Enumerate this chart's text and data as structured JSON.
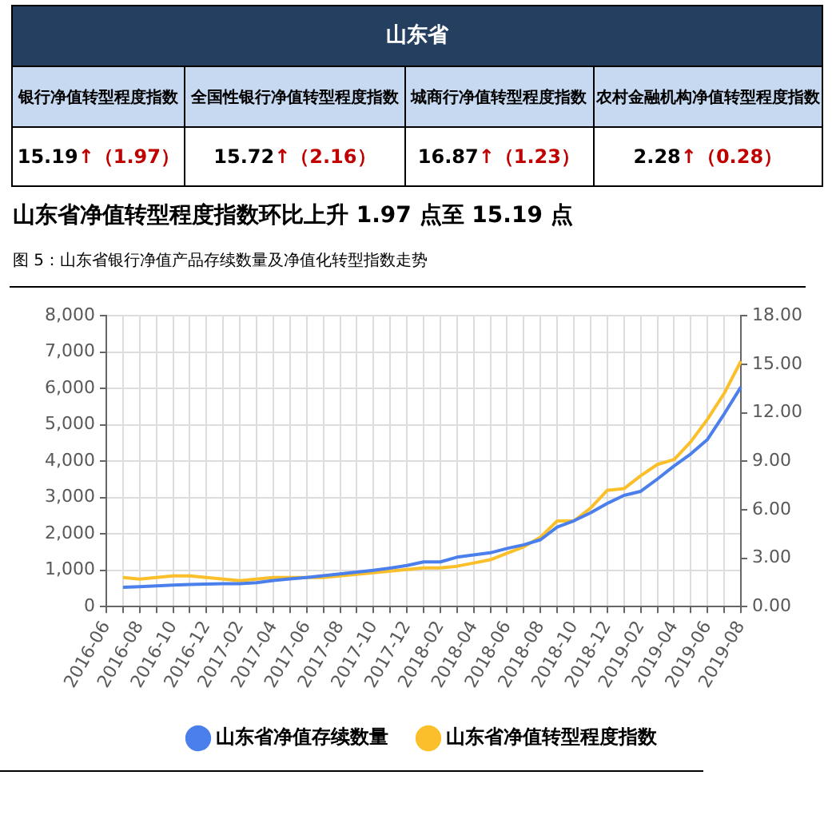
{
  "chart_data": [
    {
      "type": "other",
      "title": "山东省",
      "annotations": [
        "银行净值转型程度指数",
        "全国性银行净值转型程度指数",
        "城商行净值转型程度指数",
        "农村金融机构净值转型程度指数",
        "15.19↑（1.97）",
        "15.72↑（2.16）",
        "16.87↑（1.23）",
        "2.28↑（0.28）"
      ]
    },
    {
      "type": "line",
      "title": "山东省净值转型程度指数环比上升 1.97 点至 15.19 点",
      "subtitle": "图 5：山东省银行净值产品存续数量及净值化转型指数走势",
      "categories": [
        "2016-06",
        null,
        "2016-08",
        null,
        "2016-10",
        null,
        "2016-12",
        null,
        "2017-02",
        null,
        "2017-04",
        null,
        "2017-06",
        null,
        "2017-08",
        null,
        "2017-10",
        null,
        "2017-12",
        null,
        "2018-02",
        null,
        "2018-04",
        null,
        "2018-06",
        null,
        "2018-08",
        null,
        "2018-10",
        null,
        "2018-12",
        null,
        "2019-02",
        null,
        "2019-04",
        null,
        "2019-06",
        null,
        "2019-08"
      ],
      "series": [
        {
          "name": "山东省净值存续数量",
          "color": "#4a7fec",
          "values": [
            null,
            530,
            550,
            570,
            590,
            610,
            620,
            630,
            630,
            660,
            720,
            760,
            800,
            850,
            900,
            950,
            1000,
            1060,
            1130,
            1230,
            1230,
            1360,
            1420,
            1480,
            1600,
            1700,
            1840,
            2190,
            2360,
            2580,
            2840,
            3060,
            3170,
            3510,
            3870,
            4200,
            4600,
            5300,
            6040
          ]
        },
        {
          "name": "山东省净值转型程度指数",
          "color": "#fbbf2b",
          "axis": "y2",
          "values": [
            null,
            1.8,
            1.7,
            1.8,
            1.9,
            1.9,
            1.8,
            1.7,
            1.6,
            1.7,
            1.8,
            1.8,
            1.8,
            1.8,
            1.9,
            2.0,
            2.1,
            2.2,
            2.3,
            2.4,
            2.4,
            2.5,
            2.7,
            2.9,
            3.3,
            3.7,
            4.3,
            5.3,
            5.3,
            6.1,
            7.2,
            7.3,
            8.1,
            8.8,
            9.1,
            10.2,
            11.6,
            13.2,
            15.19
          ]
        }
      ],
      "ylim": [
        0,
        8000
      ],
      "yticks": [
        0,
        {
          "value": 1000,
          "label": "1,000"
        },
        {
          "value": 2000,
          "label": "2,000"
        },
        {
          "value": 3000,
          "label": "3,000"
        },
        {
          "value": 4000,
          "label": "4,000"
        },
        {
          "value": 5000,
          "label": "5,000"
        },
        {
          "value": 6000,
          "label": "6,000"
        },
        {
          "value": 7000,
          "label": "7,000"
        },
        {
          "value": 8000,
          "label": "8,000"
        }
      ],
      "y2lim": [
        0,
        18
      ],
      "y2ticks": [
        {
          "value": 0,
          "label": "0.00"
        },
        {
          "value": 3,
          "label": "3.00"
        },
        {
          "value": 6,
          "label": "6.00"
        },
        {
          "value": 9,
          "label": "9.00"
        },
        {
          "value": 12,
          "label": "12.00"
        },
        {
          "value": 15,
          "label": "15.00"
        },
        {
          "value": 18,
          "label": "18.00"
        }
      ],
      "grid": true,
      "legend": "bottom"
    }
  ]
}
